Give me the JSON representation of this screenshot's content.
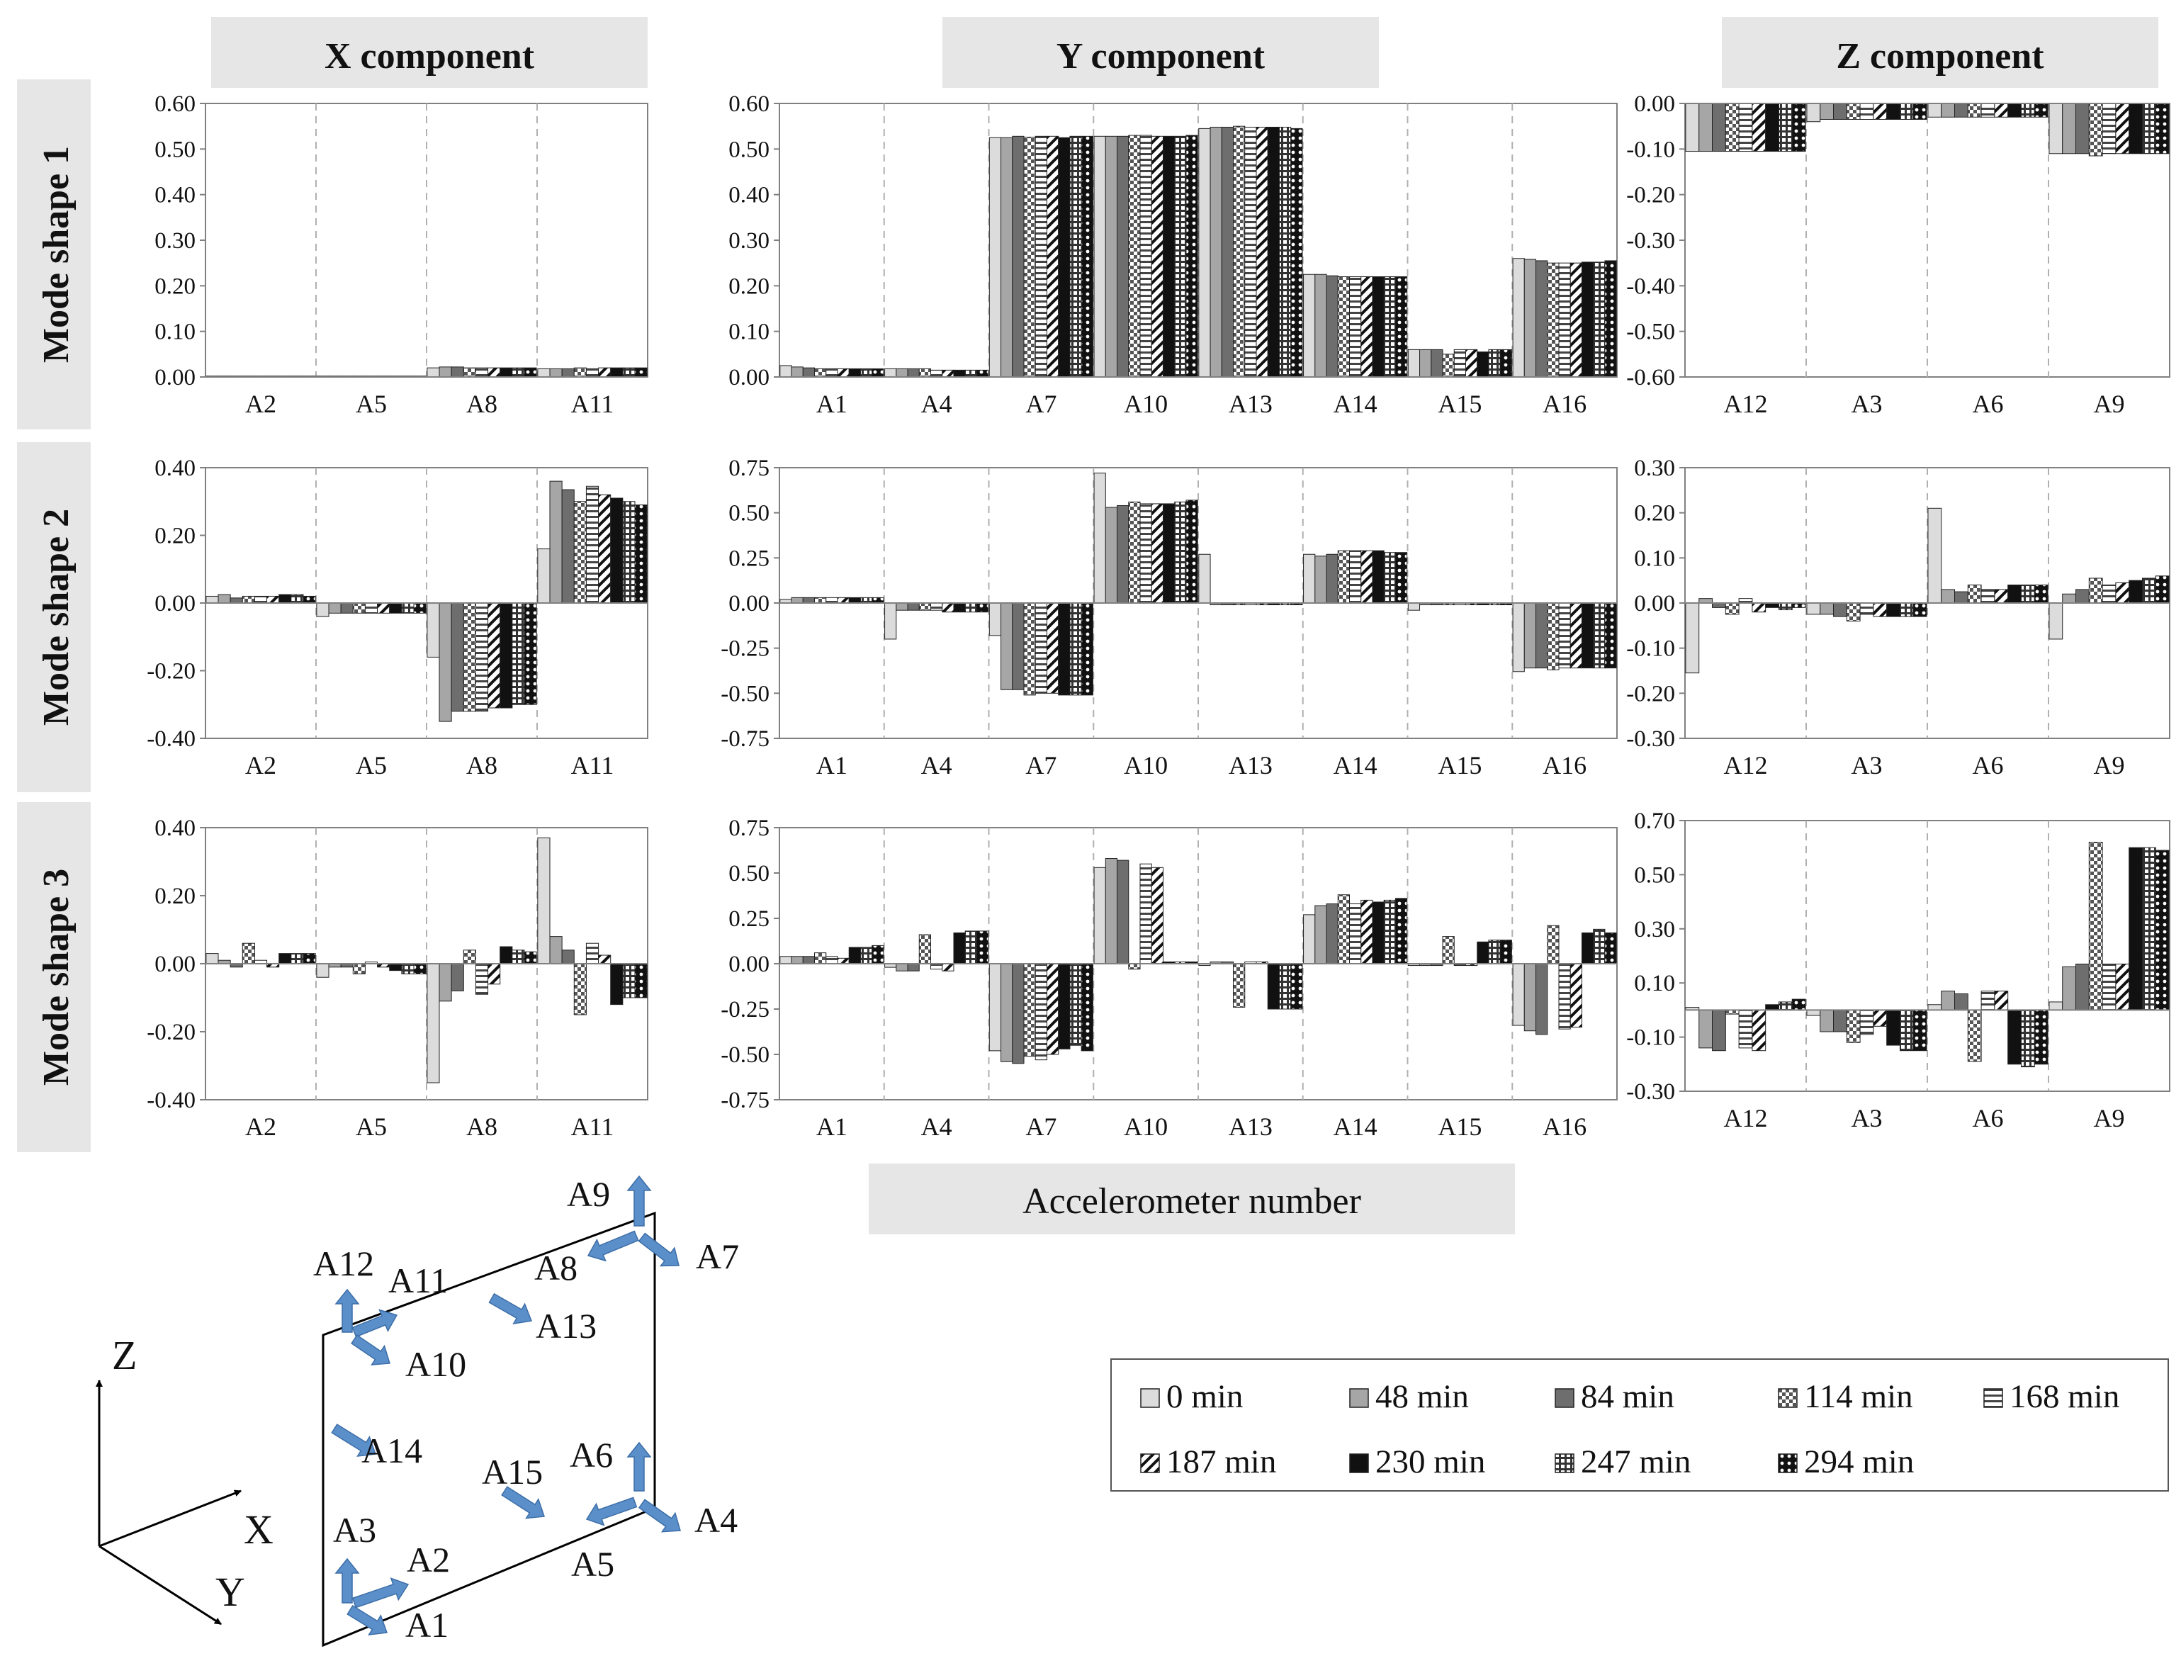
{
  "colors": {
    "panel_bg": "#e6e6e6",
    "axis": "#808080",
    "separator": "#b0b0b0",
    "arrow": "#5b8fc9",
    "bar_edge": "#222222"
  },
  "column_headers": [
    "X component",
    "Y component",
    "Z component"
  ],
  "row_headers": [
    "Mode shape 1",
    "Mode shape 2",
    "Mode shape 3"
  ],
  "xlabel": "Accelerometer number",
  "legend": {
    "entries": [
      {
        "label": "0 min",
        "fill": "light"
      },
      {
        "label": "48 min",
        "fill": "gray"
      },
      {
        "label": "84 min",
        "fill": "dark"
      },
      {
        "label": "114 min",
        "fill": "checker"
      },
      {
        "label": "168 min",
        "fill": "hlines"
      },
      {
        "label": "187 min",
        "fill": "diag"
      },
      {
        "label": "230 min",
        "fill": "black"
      },
      {
        "label": "247 min",
        "fill": "grid"
      },
      {
        "label": "294 min",
        "fill": "dots"
      }
    ]
  },
  "chart_data": [
    {
      "id": "m1x",
      "type": "bar",
      "title": "Mode shape 1 - X component",
      "ylim": [
        0,
        0.6
      ],
      "yticks": [
        "0.00",
        "0.10",
        "0.20",
        "0.30",
        "0.40",
        "0.50",
        "0.60"
      ],
      "ytick_values": [
        0,
        0.1,
        0.2,
        0.3,
        0.4,
        0.5,
        0.6
      ],
      "categories": [
        "A2",
        "A5",
        "A8",
        "A11"
      ],
      "series_values": [
        [
          0.002,
          0.002,
          0.02,
          0.018
        ],
        [
          0.002,
          0.002,
          0.022,
          0.018
        ],
        [
          0.002,
          0.002,
          0.022,
          0.018
        ],
        [
          0.002,
          0.002,
          0.02,
          0.02
        ],
        [
          0.002,
          0.002,
          0.02,
          0.018
        ],
        [
          0.002,
          0.002,
          0.02,
          0.02
        ],
        [
          0.002,
          0.002,
          0.02,
          0.02
        ],
        [
          0.002,
          0.002,
          0.02,
          0.02
        ],
        [
          0.002,
          0.002,
          0.02,
          0.02
        ]
      ]
    },
    {
      "id": "m1y",
      "type": "bar",
      "title": "Mode shape 1 - Y component",
      "ylim": [
        0,
        0.6
      ],
      "yticks": [
        "0.00",
        "0.10",
        "0.20",
        "0.30",
        "0.40",
        "0.50",
        "0.60"
      ],
      "ytick_values": [
        0,
        0.1,
        0.2,
        0.3,
        0.4,
        0.5,
        0.6
      ],
      "categories": [
        "A1",
        "A4",
        "A7",
        "A10",
        "A13",
        "A14",
        "A15",
        "A16"
      ],
      "series_values": [
        [
          0.025,
          0.018,
          0.525,
          0.528,
          0.545,
          0.225,
          0.06,
          0.26
        ],
        [
          0.022,
          0.018,
          0.525,
          0.528,
          0.548,
          0.225,
          0.06,
          0.258
        ],
        [
          0.02,
          0.018,
          0.528,
          0.528,
          0.548,
          0.222,
          0.06,
          0.255
        ],
        [
          0.018,
          0.018,
          0.526,
          0.53,
          0.55,
          0.22,
          0.05,
          0.25
        ],
        [
          0.018,
          0.015,
          0.528,
          0.53,
          0.548,
          0.22,
          0.06,
          0.25
        ],
        [
          0.018,
          0.015,
          0.528,
          0.528,
          0.548,
          0.22,
          0.06,
          0.25
        ],
        [
          0.018,
          0.015,
          0.525,
          0.528,
          0.548,
          0.22,
          0.055,
          0.252
        ],
        [
          0.018,
          0.015,
          0.528,
          0.528,
          0.548,
          0.22,
          0.06,
          0.252
        ],
        [
          0.018,
          0.015,
          0.528,
          0.53,
          0.545,
          0.22,
          0.06,
          0.255
        ]
      ]
    },
    {
      "id": "m1z",
      "type": "bar",
      "title": "Mode shape 1 - Z component",
      "ylim": [
        -0.6,
        0
      ],
      "yticks": [
        "0.00",
        "-0.10",
        "-0.20",
        "-0.30",
        "-0.40",
        "-0.50",
        "-0.60"
      ],
      "ytick_values": [
        0,
        -0.1,
        -0.2,
        -0.3,
        -0.4,
        -0.5,
        -0.6
      ],
      "categories": [
        "A12",
        "A3",
        "A6",
        "A9"
      ],
      "series_values": [
        [
          -0.105,
          -0.04,
          -0.03,
          -0.11
        ],
        [
          -0.105,
          -0.035,
          -0.03,
          -0.11
        ],
        [
          -0.105,
          -0.035,
          -0.03,
          -0.11
        ],
        [
          -0.105,
          -0.035,
          -0.03,
          -0.115
        ],
        [
          -0.105,
          -0.035,
          -0.03,
          -0.11
        ],
        [
          -0.105,
          -0.035,
          -0.03,
          -0.11
        ],
        [
          -0.105,
          -0.035,
          -0.03,
          -0.11
        ],
        [
          -0.105,
          -0.035,
          -0.03,
          -0.11
        ],
        [
          -0.105,
          -0.035,
          -0.03,
          -0.11
        ]
      ]
    },
    {
      "id": "m2x",
      "type": "bar",
      "title": "Mode shape 2 - X component",
      "ylim": [
        -0.4,
        0.4
      ],
      "yticks": [
        "0.40",
        "0.20",
        "0.00",
        "-0.20",
        "-0.40"
      ],
      "ytick_values": [
        0.4,
        0.2,
        0,
        -0.2,
        -0.4
      ],
      "categories": [
        "A2",
        "A5",
        "A8",
        "A11"
      ],
      "series_values": [
        [
          0.02,
          -0.04,
          -0.16,
          0.16
        ],
        [
          0.025,
          -0.03,
          -0.35,
          0.36
        ],
        [
          0.015,
          -0.03,
          -0.32,
          0.335
        ],
        [
          0.02,
          -0.03,
          -0.32,
          0.3
        ],
        [
          0.02,
          -0.03,
          -0.32,
          0.345
        ],
        [
          0.02,
          -0.03,
          -0.31,
          0.32
        ],
        [
          0.025,
          -0.03,
          -0.31,
          0.31
        ],
        [
          0.025,
          -0.03,
          -0.3,
          0.3
        ],
        [
          0.02,
          -0.03,
          -0.3,
          0.29
        ]
      ]
    },
    {
      "id": "m2y",
      "type": "bar",
      "title": "Mode shape 2 - Y component",
      "ylim": [
        -0.75,
        0.75
      ],
      "yticks": [
        "0.75",
        "0.50",
        "0.25",
        "0.00",
        "-0.25",
        "-0.50",
        "-0.75"
      ],
      "ytick_values": [
        0.75,
        0.5,
        0.25,
        0,
        -0.25,
        -0.5,
        -0.75
      ],
      "categories": [
        "A1",
        "A4",
        "A7",
        "A10",
        "A13",
        "A14",
        "A15",
        "A16"
      ],
      "series_values": [
        [
          0.02,
          -0.2,
          -0.18,
          0.72,
          0.27,
          0.27,
          -0.04,
          -0.38
        ],
        [
          0.03,
          -0.04,
          -0.48,
          0.53,
          -0.01,
          0.26,
          -0.01,
          -0.36
        ],
        [
          0.03,
          -0.04,
          -0.48,
          0.54,
          -0.01,
          0.27,
          -0.01,
          -0.36
        ],
        [
          0.03,
          -0.04,
          -0.51,
          0.56,
          -0.01,
          0.29,
          -0.01,
          -0.37
        ],
        [
          0.03,
          -0.04,
          -0.5,
          0.55,
          -0.01,
          0.29,
          -0.01,
          -0.36
        ],
        [
          0.03,
          -0.05,
          -0.5,
          0.55,
          -0.01,
          0.29,
          -0.01,
          -0.36
        ],
        [
          0.03,
          -0.05,
          -0.51,
          0.55,
          -0.01,
          0.29,
          -0.01,
          -0.36
        ],
        [
          0.03,
          -0.05,
          -0.51,
          0.56,
          -0.01,
          0.28,
          -0.01,
          -0.36
        ],
        [
          0.03,
          -0.05,
          -0.51,
          0.57,
          -0.01,
          0.28,
          -0.01,
          -0.36
        ]
      ]
    },
    {
      "id": "m2z",
      "type": "bar",
      "title": "Mode shape 2 - Z component",
      "ylim": [
        -0.3,
        0.3
      ],
      "yticks": [
        "0.30",
        "0.20",
        "0.10",
        "0.00",
        "-0.10",
        "-0.20",
        "-0.30"
      ],
      "ytick_values": [
        0.3,
        0.2,
        0.1,
        0,
        -0.1,
        -0.2,
        -0.3
      ],
      "categories": [
        "A12",
        "A3",
        "A6",
        "A9"
      ],
      "series_values": [
        [
          -0.155,
          -0.025,
          0.21,
          -0.08
        ],
        [
          0.01,
          -0.025,
          0.03,
          0.02
        ],
        [
          -0.01,
          -0.03,
          0.025,
          0.03
        ],
        [
          -0.025,
          -0.04,
          0.04,
          0.055
        ],
        [
          0.01,
          -0.025,
          0.03,
          0.04
        ],
        [
          -0.02,
          -0.03,
          0.03,
          0.045
        ],
        [
          -0.01,
          -0.03,
          0.04,
          0.05
        ],
        [
          -0.015,
          -0.03,
          0.04,
          0.055
        ],
        [
          -0.01,
          -0.03,
          0.04,
          0.06
        ]
      ]
    },
    {
      "id": "m3x",
      "type": "bar",
      "title": "Mode shape 3 - X component",
      "ylim": [
        -0.4,
        0.4
      ],
      "yticks": [
        "0.40",
        "0.20",
        "0.00",
        "-0.20",
        "-0.40"
      ],
      "ytick_values": [
        0.4,
        0.2,
        0,
        -0.2,
        -0.4
      ],
      "categories": [
        "A2",
        "A5",
        "A8",
        "A11"
      ],
      "series_values": [
        [
          0.03,
          -0.04,
          -0.35,
          0.37
        ],
        [
          0.01,
          -0.01,
          -0.11,
          0.08
        ],
        [
          -0.01,
          -0.01,
          -0.08,
          0.04
        ],
        [
          0.06,
          -0.03,
          0.04,
          -0.15
        ],
        [
          0.01,
          0.005,
          -0.09,
          0.06
        ],
        [
          -0.01,
          -0.01,
          -0.06,
          0.025
        ],
        [
          0.03,
          -0.02,
          0.05,
          -0.12
        ],
        [
          0.03,
          -0.03,
          0.04,
          -0.1
        ],
        [
          0.03,
          -0.03,
          0.035,
          -0.1
        ]
      ]
    },
    {
      "id": "m3y",
      "type": "bar",
      "title": "Mode shape 3 - Y component",
      "ylim": [
        -0.75,
        0.75
      ],
      "yticks": [
        "0.75",
        "0.50",
        "0.25",
        "0.00",
        "-0.25",
        "-0.50",
        "-0.75"
      ],
      "ytick_values": [
        0.75,
        0.5,
        0.25,
        0,
        -0.25,
        -0.5,
        -0.75
      ],
      "categories": [
        "A1",
        "A4",
        "A7",
        "A10",
        "A13",
        "A14",
        "A15",
        "A16"
      ],
      "series_values": [
        [
          0.04,
          -0.02,
          -0.48,
          0.53,
          -0.01,
          0.27,
          -0.01,
          -0.34
        ],
        [
          0.04,
          -0.04,
          -0.54,
          0.58,
          0.01,
          0.32,
          -0.01,
          -0.37
        ],
        [
          0.04,
          -0.04,
          -0.55,
          0.57,
          0.01,
          0.33,
          -0.01,
          -0.39
        ],
        [
          0.06,
          0.16,
          -0.51,
          -0.03,
          -0.24,
          0.38,
          0.15,
          0.21
        ],
        [
          0.04,
          -0.03,
          -0.53,
          0.55,
          0.01,
          0.33,
          -0.01,
          -0.36
        ],
        [
          0.03,
          -0.04,
          -0.5,
          0.53,
          0.01,
          0.35,
          -0.01,
          -0.35
        ],
        [
          0.09,
          0.17,
          -0.47,
          0.01,
          -0.25,
          0.34,
          0.12,
          0.17
        ],
        [
          0.09,
          0.18,
          -0.45,
          0.01,
          -0.25,
          0.35,
          0.13,
          0.19
        ],
        [
          0.1,
          0.18,
          -0.48,
          0.01,
          -0.25,
          0.36,
          0.13,
          0.17
        ]
      ]
    },
    {
      "id": "m3z",
      "type": "bar",
      "title": "Mode shape 3 - Z component",
      "ylim": [
        -0.3,
        0.7
      ],
      "yticks": [
        "0.70",
        "0.50",
        "0.30",
        "0.10",
        "-0.10",
        "-0.30"
      ],
      "ytick_values": [
        0.7,
        0.5,
        0.3,
        0.1,
        -0.1,
        -0.3
      ],
      "categories": [
        "A12",
        "A3",
        "A6",
        "A9"
      ],
      "series_values": [
        [
          0.01,
          -0.02,
          0.02,
          0.03
        ],
        [
          -0.14,
          -0.08,
          0.07,
          0.16
        ],
        [
          -0.15,
          -0.08,
          0.06,
          0.17
        ],
        [
          -0.015,
          -0.12,
          -0.19,
          0.62
        ],
        [
          -0.14,
          -0.09,
          0.07,
          0.17
        ],
        [
          -0.15,
          -0.06,
          0.07,
          0.17
        ],
        [
          0.02,
          -0.13,
          -0.2,
          0.6
        ],
        [
          0.03,
          -0.15,
          -0.21,
          0.6
        ],
        [
          0.04,
          -0.15,
          -0.2,
          0.59
        ]
      ]
    }
  ],
  "diagram": {
    "axes": [
      "Z",
      "X",
      "Y"
    ],
    "labels": [
      "A9",
      "A7",
      "A8",
      "A12",
      "A11",
      "A13",
      "A10",
      "A14",
      "A6",
      "A15",
      "A4",
      "A3",
      "A2",
      "A5",
      "A1"
    ]
  }
}
